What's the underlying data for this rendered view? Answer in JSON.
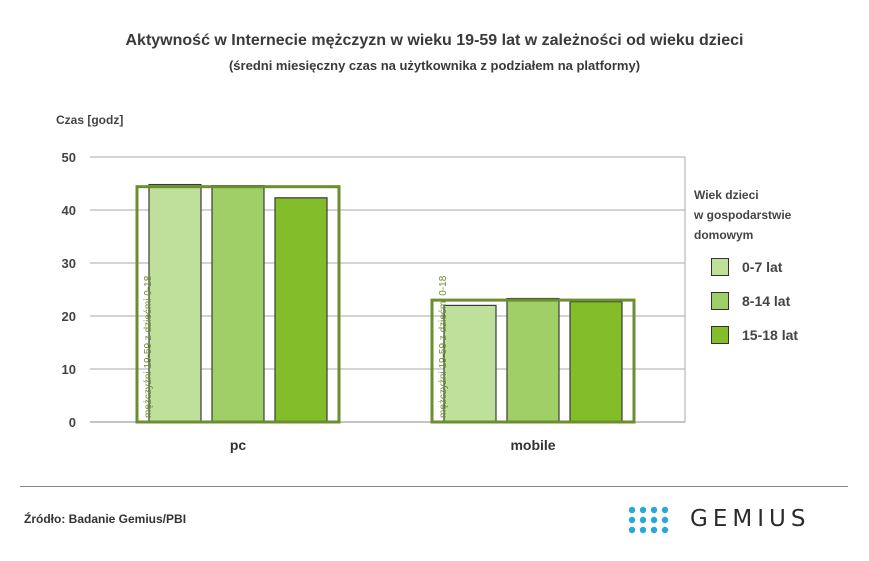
{
  "chart_data": {
    "type": "bar",
    "title": "Aktywność w Internecie mężczyzn w wieku 19-59 lat w zależności od wieku dzieci",
    "subtitle": "(średni miesięczny czas na użytkownika z podziałem na platformy)",
    "ylabel": "Czas [godz]",
    "xlabel": "",
    "ylim": [
      0,
      50
    ],
    "yticks": [
      0,
      10,
      20,
      30,
      40,
      50
    ],
    "grid": true,
    "categories": [
      "pc",
      "mobile"
    ],
    "series": [
      {
        "name": "0-7 lat",
        "color": "#bfe09a",
        "values": [
          44.8,
          22.0
        ]
      },
      {
        "name": "8-14 lat",
        "color": "#9fcf66",
        "values": [
          44.6,
          23.3
        ]
      },
      {
        "name": "15-18 lat",
        "color": "#84bd2a",
        "values": [
          42.3,
          22.7
        ]
      }
    ],
    "reference": {
      "label": "mężczyźni 19-59 z dziećmi 0-18",
      "color": "#6b8f2e",
      "values": [
        44.4,
        23.0
      ]
    },
    "legend": {
      "title_lines": [
        "Wiek dzieci",
        "w gospodarstwie",
        "domowym"
      ],
      "position": "right"
    }
  },
  "footer": {
    "source": "Źródło: Badanie Gemius/PBI",
    "logo_text": "GEMIUS"
  },
  "colors": {
    "logo_dots": "#29a8d8",
    "text": "#3a3a3a",
    "grid": "#aaaaaa",
    "bar_stroke": "#3a3a3a"
  }
}
